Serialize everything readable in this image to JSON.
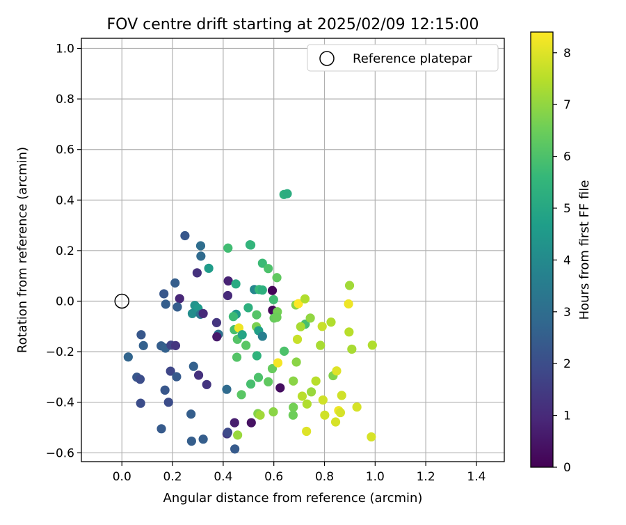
{
  "chart_data": {
    "type": "scatter",
    "title": "FOV centre drift starting at 2025/02/09 12:15:00",
    "xlabel": "Angular distance from reference (arcmin)",
    "ylabel": "Rotation from reference (arcmin)",
    "xlim": [
      -0.16,
      1.51
    ],
    "ylim": [
      -0.635,
      1.04
    ],
    "xticks": [
      "0.0",
      "0.2",
      "0.4",
      "0.6",
      "0.8",
      "1.0",
      "1.2",
      "1.4"
    ],
    "xtick_values": [
      0,
      0.2,
      0.4,
      0.6,
      0.8,
      1.0,
      1.2,
      1.4
    ],
    "yticks": [
      "−0.6",
      "−0.4",
      "−0.2",
      "0.0",
      "0.2",
      "0.4",
      "0.6",
      "0.8",
      "1.0"
    ],
    "ytick_values": [
      -0.6,
      -0.4,
      -0.2,
      0,
      0.2,
      0.4,
      0.6,
      0.8,
      1.0
    ],
    "grid": true,
    "legend": {
      "position": "top-right",
      "label": "Reference platepar"
    },
    "reference_point": {
      "x": 0,
      "y": 0
    },
    "colorbar": {
      "label": "Hours from first FF file",
      "min": 0,
      "max": 8.4,
      "ticks": [
        "0",
        "1",
        "2",
        "3",
        "4",
        "5",
        "6",
        "7",
        "8"
      ],
      "tick_values": [
        0,
        1,
        2,
        3,
        4,
        5,
        6,
        7,
        8
      ],
      "colormap": "viridis",
      "stops": [
        "#440154",
        "#482878",
        "#3e4989",
        "#31688e",
        "#26828e",
        "#1f9e89",
        "#35b779",
        "#6ece58",
        "#b5de2b",
        "#fde725"
      ]
    },
    "points": [
      {
        "x": 0.249,
        "y": 0.259,
        "c": 2.3
      },
      {
        "x": 0.311,
        "y": 0.219,
        "c": 3.0
      },
      {
        "x": 0.312,
        "y": 0.178,
        "c": 2.9
      },
      {
        "x": 0.297,
        "y": 0.112,
        "c": 1.2
      },
      {
        "x": 0.343,
        "y": 0.13,
        "c": 4.6
      },
      {
        "x": 0.21,
        "y": 0.072,
        "c": 2.5
      },
      {
        "x": 0.166,
        "y": 0.029,
        "c": 2.3
      },
      {
        "x": 0.173,
        "y": -0.012,
        "c": 2.5
      },
      {
        "x": 0.228,
        "y": 0.01,
        "c": 0.9
      },
      {
        "x": 0.219,
        "y": -0.023,
        "c": 2.5
      },
      {
        "x": 0.288,
        "y": -0.017,
        "c": 4.3
      },
      {
        "x": 0.301,
        "y": -0.029,
        "c": 4.5
      },
      {
        "x": 0.278,
        "y": -0.049,
        "c": 4.1
      },
      {
        "x": 0.31,
        "y": -0.052,
        "c": 3.2
      },
      {
        "x": 0.321,
        "y": -0.049,
        "c": 1.0
      },
      {
        "x": 0.076,
        "y": -0.133,
        "c": 2.3
      },
      {
        "x": 0.085,
        "y": -0.176,
        "c": 2.6
      },
      {
        "x": 0.155,
        "y": -0.177,
        "c": 2.5
      },
      {
        "x": 0.172,
        "y": -0.186,
        "c": 2.6
      },
      {
        "x": 0.194,
        "y": -0.174,
        "c": 1.7
      },
      {
        "x": 0.212,
        "y": -0.176,
        "c": 1.3
      },
      {
        "x": 0.025,
        "y": -0.221,
        "c": 2.7
      },
      {
        "x": 0.059,
        "y": -0.301,
        "c": 2.3
      },
      {
        "x": 0.072,
        "y": -0.309,
        "c": 2.0
      },
      {
        "x": 0.192,
        "y": -0.277,
        "c": 1.8
      },
      {
        "x": 0.216,
        "y": -0.299,
        "c": 2.4
      },
      {
        "x": 0.283,
        "y": -0.258,
        "c": 2.6
      },
      {
        "x": 0.303,
        "y": -0.293,
        "c": 1.2
      },
      {
        "x": 0.335,
        "y": -0.33,
        "c": 1.3
      },
      {
        "x": 0.17,
        "y": -0.352,
        "c": 2.3
      },
      {
        "x": 0.074,
        "y": -0.404,
        "c": 2.0
      },
      {
        "x": 0.184,
        "y": -0.4,
        "c": 2.0
      },
      {
        "x": 0.273,
        "y": -0.447,
        "c": 2.5
      },
      {
        "x": 0.156,
        "y": -0.505,
        "c": 2.4
      },
      {
        "x": 0.275,
        "y": -0.554,
        "c": 2.5
      },
      {
        "x": 0.321,
        "y": -0.546,
        "c": 2.5
      },
      {
        "x": 0.415,
        "y": -0.525,
        "c": 1.4
      },
      {
        "x": 0.418,
        "y": -0.519,
        "c": 1.9
      },
      {
        "x": 0.446,
        "y": -0.585,
        "c": 2.4
      },
      {
        "x": 0.414,
        "y": -0.349,
        "c": 2.9
      },
      {
        "x": 0.381,
        "y": -0.131,
        "c": 3.1
      },
      {
        "x": 0.374,
        "y": -0.085,
        "c": 1.3
      },
      {
        "x": 0.375,
        "y": -0.141,
        "c": 0.6
      },
      {
        "x": 0.42,
        "y": 0.08,
        "c": 0.8
      },
      {
        "x": 0.418,
        "y": 0.022,
        "c": 1.0
      },
      {
        "x": 0.419,
        "y": 0.21,
        "c": 5.8
      },
      {
        "x": 0.45,
        "y": 0.068,
        "c": 5.1
      },
      {
        "x": 0.506,
        "y": 0.223,
        "c": 5.3
      },
      {
        "x": 0.509,
        "y": 0.222,
        "c": 5.5
      },
      {
        "x": 0.555,
        "y": 0.15,
        "c": 5.7
      },
      {
        "x": 0.578,
        "y": 0.129,
        "c": 6.0
      },
      {
        "x": 0.612,
        "y": 0.093,
        "c": 6.3
      },
      {
        "x": 0.523,
        "y": 0.046,
        "c": 3.9
      },
      {
        "x": 0.542,
        "y": 0.046,
        "c": 5.6
      },
      {
        "x": 0.555,
        "y": 0.044,
        "c": 5.3
      },
      {
        "x": 0.594,
        "y": 0.042,
        "c": 0.1
      },
      {
        "x": 0.599,
        "y": 0.006,
        "c": 5.8
      },
      {
        "x": 0.499,
        "y": -0.026,
        "c": 5.3
      },
      {
        "x": 0.451,
        "y": -0.052,
        "c": 4.5
      },
      {
        "x": 0.44,
        "y": -0.061,
        "c": 5.7
      },
      {
        "x": 0.532,
        "y": -0.054,
        "c": 6.1
      },
      {
        "x": 0.595,
        "y": -0.036,
        "c": 0.2
      },
      {
        "x": 0.614,
        "y": -0.042,
        "c": 6.6
      },
      {
        "x": 0.601,
        "y": -0.067,
        "c": 6.4
      },
      {
        "x": 0.612,
        "y": -0.064,
        "c": 6.5
      },
      {
        "x": 0.444,
        "y": -0.113,
        "c": 5.9
      },
      {
        "x": 0.462,
        "y": -0.106,
        "c": 8.2
      },
      {
        "x": 0.456,
        "y": -0.151,
        "c": 6.1
      },
      {
        "x": 0.475,
        "y": -0.133,
        "c": 4.9
      },
      {
        "x": 0.49,
        "y": -0.175,
        "c": 6.2
      },
      {
        "x": 0.531,
        "y": -0.101,
        "c": 6.7
      },
      {
        "x": 0.54,
        "y": -0.117,
        "c": 4.7
      },
      {
        "x": 0.555,
        "y": -0.139,
        "c": 3.6
      },
      {
        "x": 0.454,
        "y": -0.222,
        "c": 6.1
      },
      {
        "x": 0.533,
        "y": -0.216,
        "c": 5.4
      },
      {
        "x": 0.641,
        "y": -0.198,
        "c": 6.0
      },
      {
        "x": 0.594,
        "y": -0.267,
        "c": 6.4
      },
      {
        "x": 0.616,
        "y": -0.244,
        "c": 8.3
      },
      {
        "x": 0.539,
        "y": -0.302,
        "c": 6.0
      },
      {
        "x": 0.509,
        "y": -0.328,
        "c": 5.9
      },
      {
        "x": 0.578,
        "y": -0.319,
        "c": 6.3
      },
      {
        "x": 0.625,
        "y": -0.343,
        "c": 0.3
      },
      {
        "x": 0.472,
        "y": -0.37,
        "c": 6.2
      },
      {
        "x": 0.511,
        "y": -0.481,
        "c": 0.4
      },
      {
        "x": 0.445,
        "y": -0.481,
        "c": 0.7
      },
      {
        "x": 0.537,
        "y": -0.445,
        "c": 6.8
      },
      {
        "x": 0.546,
        "y": -0.451,
        "c": 7.2
      },
      {
        "x": 0.598,
        "y": -0.438,
        "c": 6.9
      },
      {
        "x": 0.457,
        "y": -0.53,
        "c": 7.1
      },
      {
        "x": 0.64,
        "y": 0.422,
        "c": 5.3
      },
      {
        "x": 0.653,
        "y": 0.425,
        "c": 5.2
      },
      {
        "x": 0.687,
        "y": -0.015,
        "c": 6.9
      },
      {
        "x": 0.697,
        "y": -0.01,
        "c": 8.4
      },
      {
        "x": 0.723,
        "y": 0.009,
        "c": 7.4
      },
      {
        "x": 0.724,
        "y": -0.091,
        "c": 5.9
      },
      {
        "x": 0.744,
        "y": -0.067,
        "c": 7.0
      },
      {
        "x": 0.706,
        "y": -0.101,
        "c": 7.3
      },
      {
        "x": 0.693,
        "y": -0.151,
        "c": 7.7
      },
      {
        "x": 0.784,
        "y": -0.175,
        "c": 7.3
      },
      {
        "x": 0.791,
        "y": -0.1,
        "c": 7.7
      },
      {
        "x": 0.826,
        "y": -0.083,
        "c": 7.4
      },
      {
        "x": 0.689,
        "y": -0.241,
        "c": 6.9
      },
      {
        "x": 0.677,
        "y": -0.316,
        "c": 6.9
      },
      {
        "x": 0.712,
        "y": -0.376,
        "c": 7.5
      },
      {
        "x": 0.748,
        "y": -0.359,
        "c": 7.1
      },
      {
        "x": 0.766,
        "y": -0.316,
        "c": 7.5
      },
      {
        "x": 0.677,
        "y": -0.42,
        "c": 6.6
      },
      {
        "x": 0.676,
        "y": -0.451,
        "c": 6.5
      },
      {
        "x": 0.731,
        "y": -0.407,
        "c": 7.4
      },
      {
        "x": 0.729,
        "y": -0.515,
        "c": 8.0
      },
      {
        "x": 0.794,
        "y": -0.391,
        "c": 7.8
      },
      {
        "x": 0.801,
        "y": -0.451,
        "c": 7.8
      },
      {
        "x": 0.844,
        "y": -0.478,
        "c": 7.9
      },
      {
        "x": 0.856,
        "y": -0.433,
        "c": 8.2
      },
      {
        "x": 0.863,
        "y": -0.441,
        "c": 7.9
      },
      {
        "x": 0.834,
        "y": -0.295,
        "c": 6.8
      },
      {
        "x": 0.848,
        "y": -0.276,
        "c": 8.0
      },
      {
        "x": 0.868,
        "y": -0.373,
        "c": 7.8
      },
      {
        "x": 0.895,
        "y": -0.011,
        "c": 8.2
      },
      {
        "x": 0.897,
        "y": -0.122,
        "c": 7.5
      },
      {
        "x": 0.899,
        "y": 0.062,
        "c": 7.2
      },
      {
        "x": 0.908,
        "y": -0.19,
        "c": 7.3
      },
      {
        "x": 0.928,
        "y": -0.419,
        "c": 7.9
      },
      {
        "x": 0.985,
        "y": -0.537,
        "c": 7.9
      },
      {
        "x": 0.989,
        "y": -0.174,
        "c": 7.4
      }
    ]
  }
}
